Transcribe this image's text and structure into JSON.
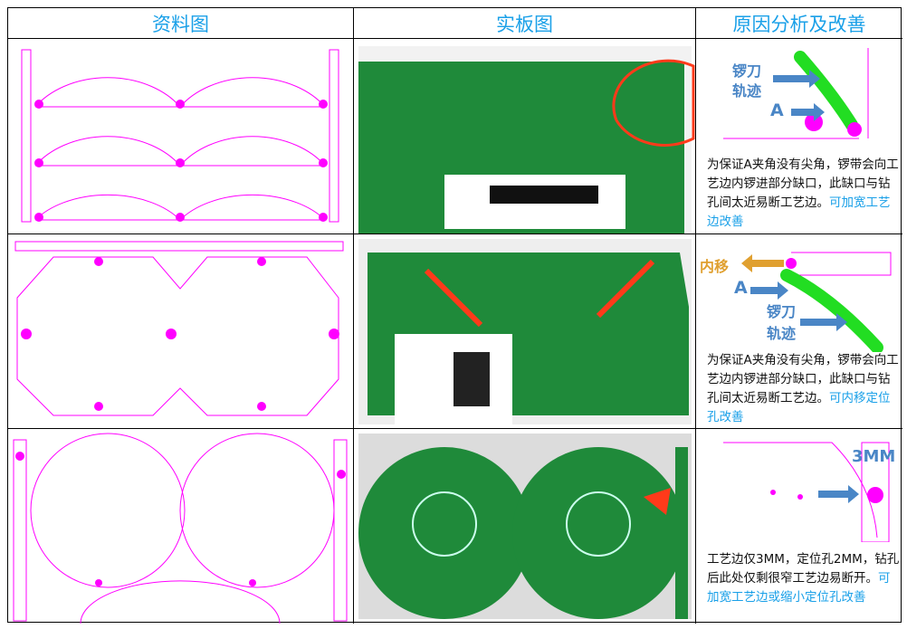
{
  "headers": [
    "资料图",
    "实板图",
    "原因分析及改善"
  ],
  "rows": [
    {
      "diagram_labels": [
        "锣刀",
        "轨迹",
        "A"
      ],
      "note": "为保证A夹角没有尖角，锣带会向工艺边内锣进部分缺口，此缺口与钻孔间太近易断工艺边。",
      "fix": "可加宽工艺边改善"
    },
    {
      "diagram_labels": [
        "内移",
        "A",
        "锣刀",
        "轨迹"
      ],
      "note": "为保证A夹角没有尖角，锣带会向工艺边内锣进部分缺口，此缺口与钻孔间太近易断工艺边。",
      "fix": "可内移定位孔改善"
    },
    {
      "diagram_labels": [
        "3MM"
      ],
      "note": "工艺边仅3MM，定位孔2MM，钻孔后此处仅剩很窄工艺边易断开。",
      "fix": "可加宽工艺边或缩小定位孔改善"
    }
  ],
  "colors": {
    "header": "#1aa0e8",
    "pcb_outline": "#ff00ff",
    "pcb_green": "#1f8a3a",
    "route": "#22dd22",
    "arrow": "#4a86c6",
    "highlight": "#ff3a1a"
  }
}
